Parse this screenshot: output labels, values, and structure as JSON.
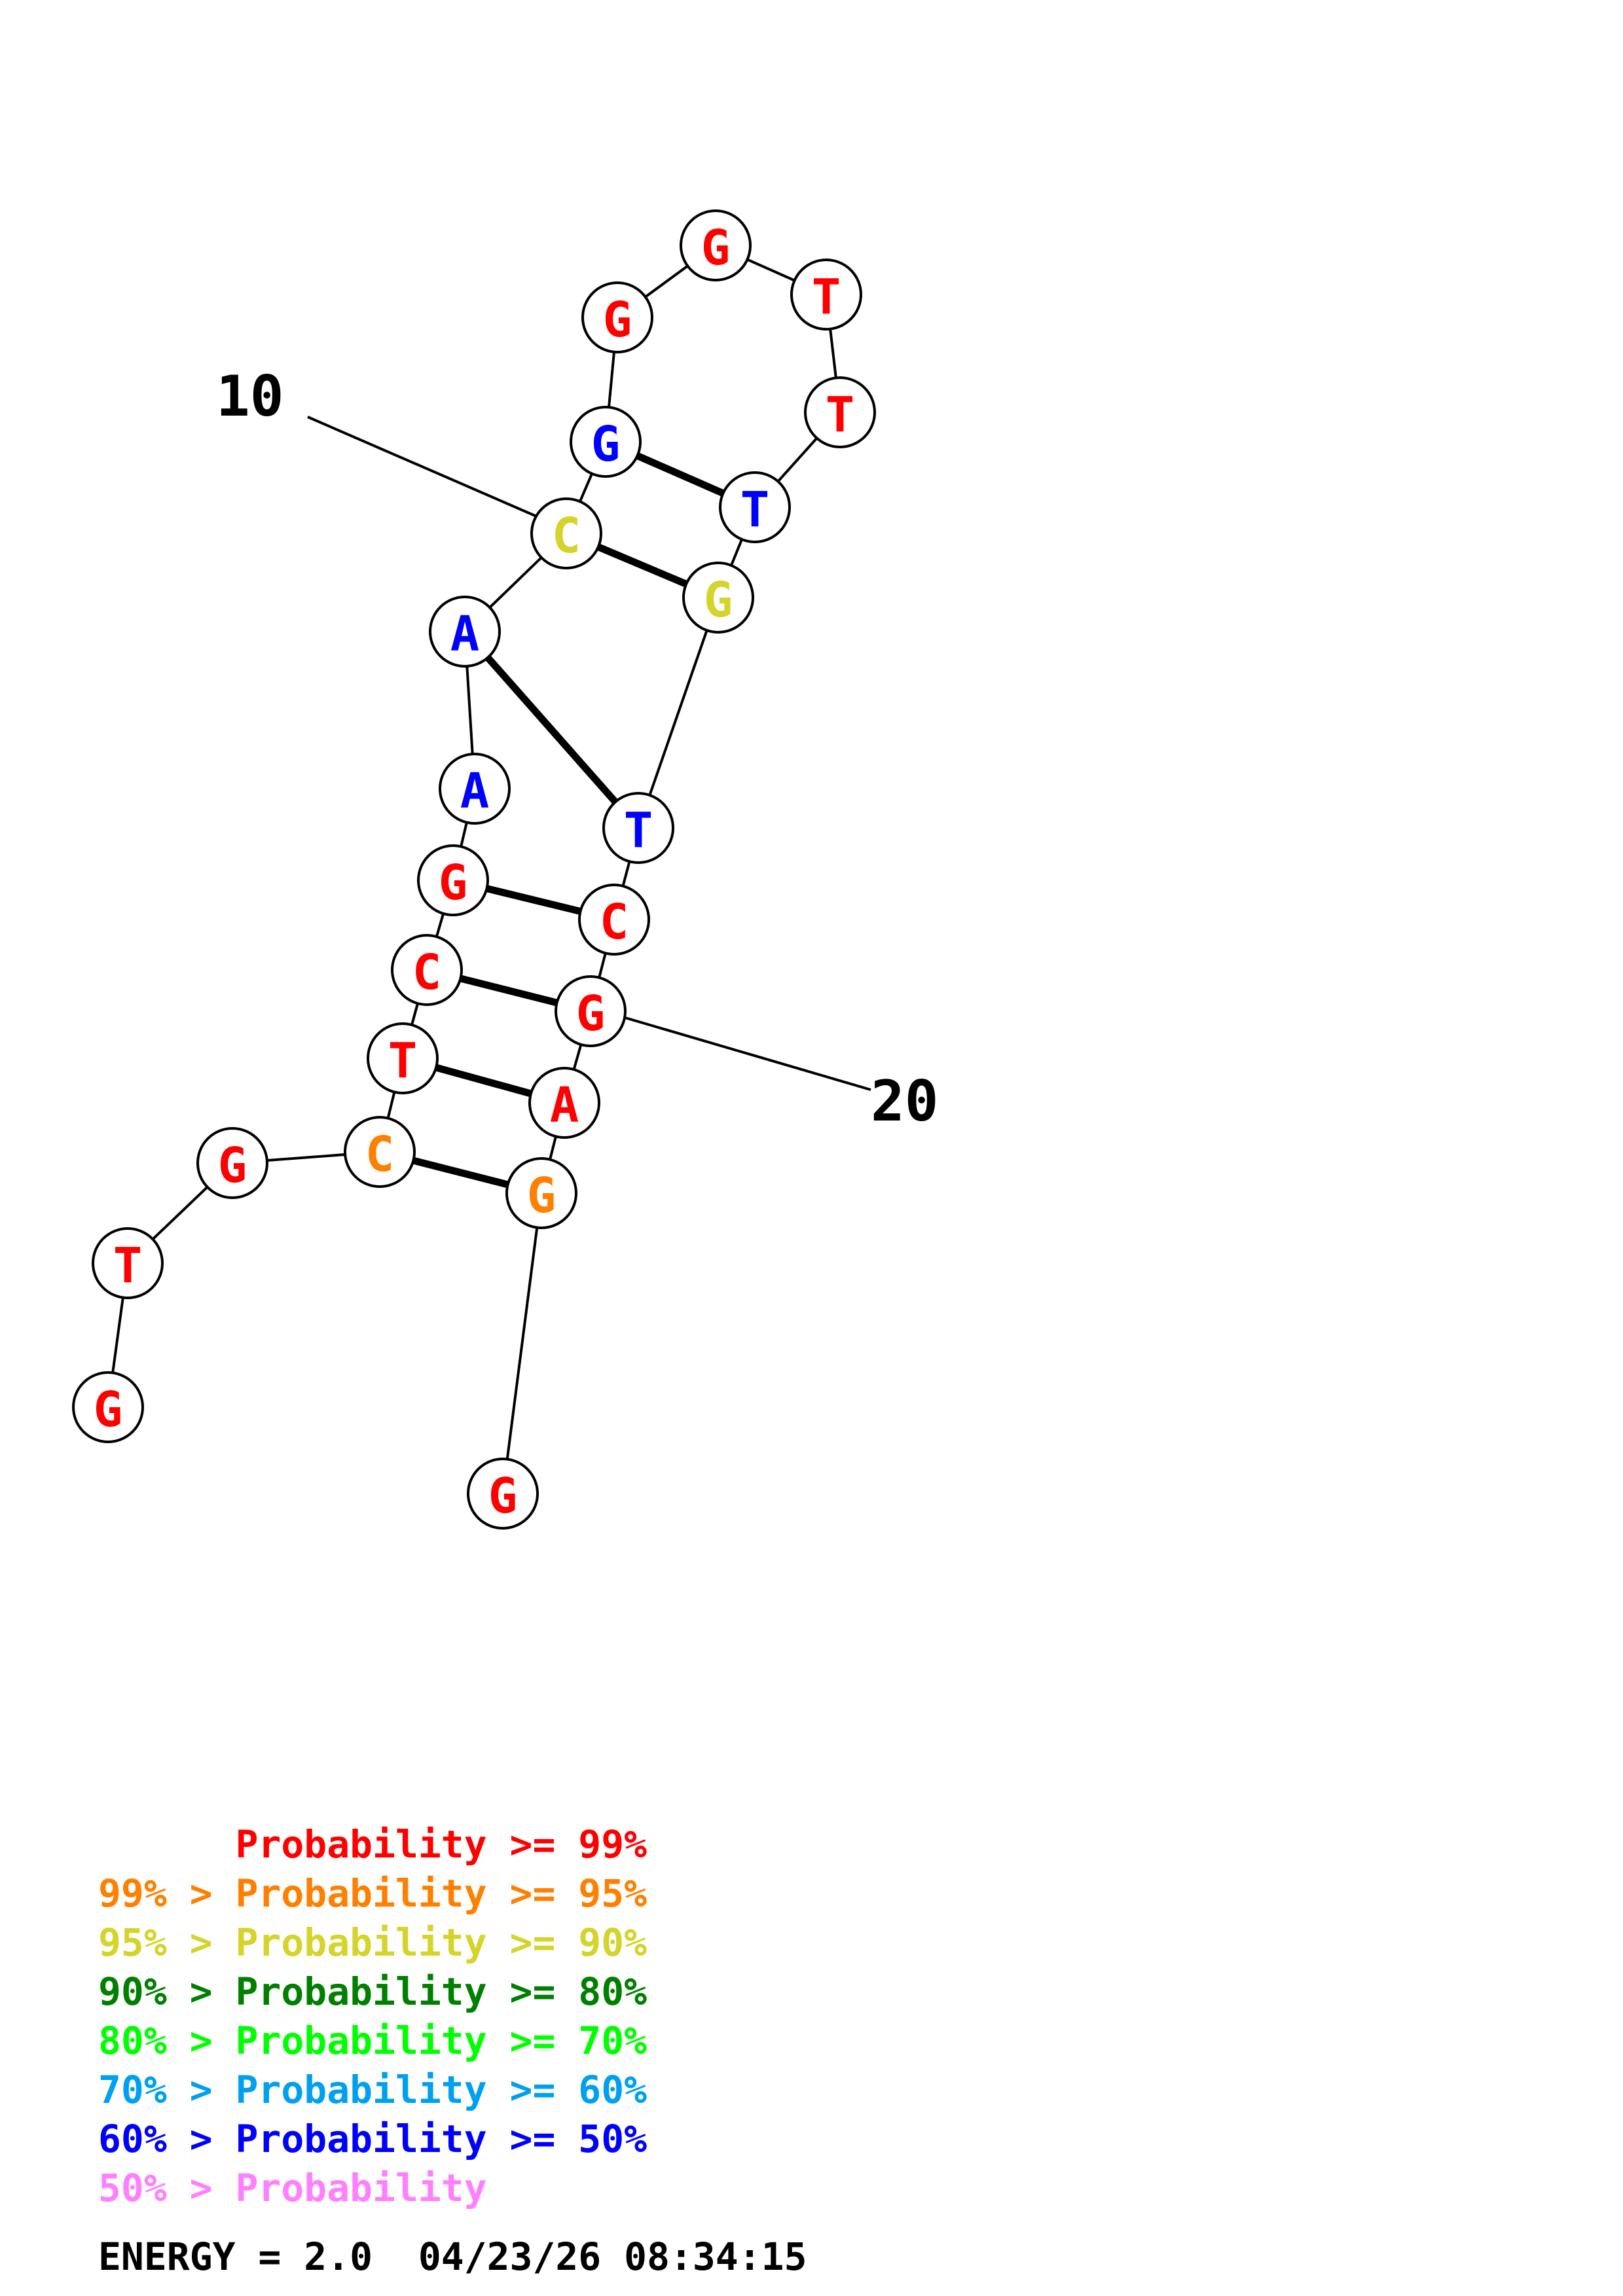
{
  "prob_colors": {
    "p99": "#ff0000",
    "p95": "#ff8000",
    "p90": "#d4d42a",
    "p80": "#008000",
    "p70": "#00ff00",
    "p60": "#00a0f0",
    "p50": "#0000ff",
    "plt50": "#ff80ff"
  },
  "bases": [
    {
      "letter": "G",
      "prob": "p99"
    },
    {
      "letter": "T",
      "prob": "p99"
    },
    {
      "letter": "G",
      "prob": "p99"
    },
    {
      "letter": "C",
      "prob": "p95"
    },
    {
      "letter": "T",
      "prob": "p99"
    },
    {
      "letter": "C",
      "prob": "p99"
    },
    {
      "letter": "G",
      "prob": "p99"
    },
    {
      "letter": "A",
      "prob": "p50"
    },
    {
      "letter": "A",
      "prob": "p50"
    },
    {
      "letter": "C",
      "prob": "p90"
    },
    {
      "letter": "G",
      "prob": "p50"
    },
    {
      "letter": "G",
      "prob": "p99"
    },
    {
      "letter": "G",
      "prob": "p99"
    },
    {
      "letter": "T",
      "prob": "p99"
    },
    {
      "letter": "T",
      "prob": "p99"
    },
    {
      "letter": "T",
      "prob": "p50"
    },
    {
      "letter": "G",
      "prob": "p90"
    },
    {
      "letter": "T",
      "prob": "p50"
    },
    {
      "letter": "C",
      "prob": "p99"
    },
    {
      "letter": "G",
      "prob": "p99"
    },
    {
      "letter": "A",
      "prob": "p99"
    },
    {
      "letter": "G",
      "prob": "p95"
    },
    {
      "letter": "G",
      "prob": "p99"
    }
  ],
  "pairs": [
    [
      4,
      22
    ],
    [
      5,
      21
    ],
    [
      6,
      20
    ],
    [
      7,
      19
    ],
    [
      9,
      18
    ],
    [
      10,
      17
    ],
    [
      11,
      16
    ]
  ],
  "position_labels": [
    {
      "index": 10,
      "text": "10"
    },
    {
      "index": 20,
      "text": "20"
    }
  ],
  "legend": [
    {
      "text": "      Probability >= 99%",
      "prob": "p99"
    },
    {
      "text": "99% > Probability >= 95%",
      "prob": "p95"
    },
    {
      "text": "95% > Probability >= 90%",
      "prob": "p90"
    },
    {
      "text": "90% > Probability >= 80%",
      "prob": "p80"
    },
    {
      "text": "80% > Probability >= 70%",
      "prob": "p70"
    },
    {
      "text": "70% > Probability >= 60%",
      "prob": "p60"
    },
    {
      "text": "60% > Probability >= 50%",
      "prob": "p50"
    },
    {
      "text": "50% > Probability",
      "prob": "plt50"
    }
  ],
  "footer": "ENERGY = 2.0  04/23/26 08:34:15"
}
